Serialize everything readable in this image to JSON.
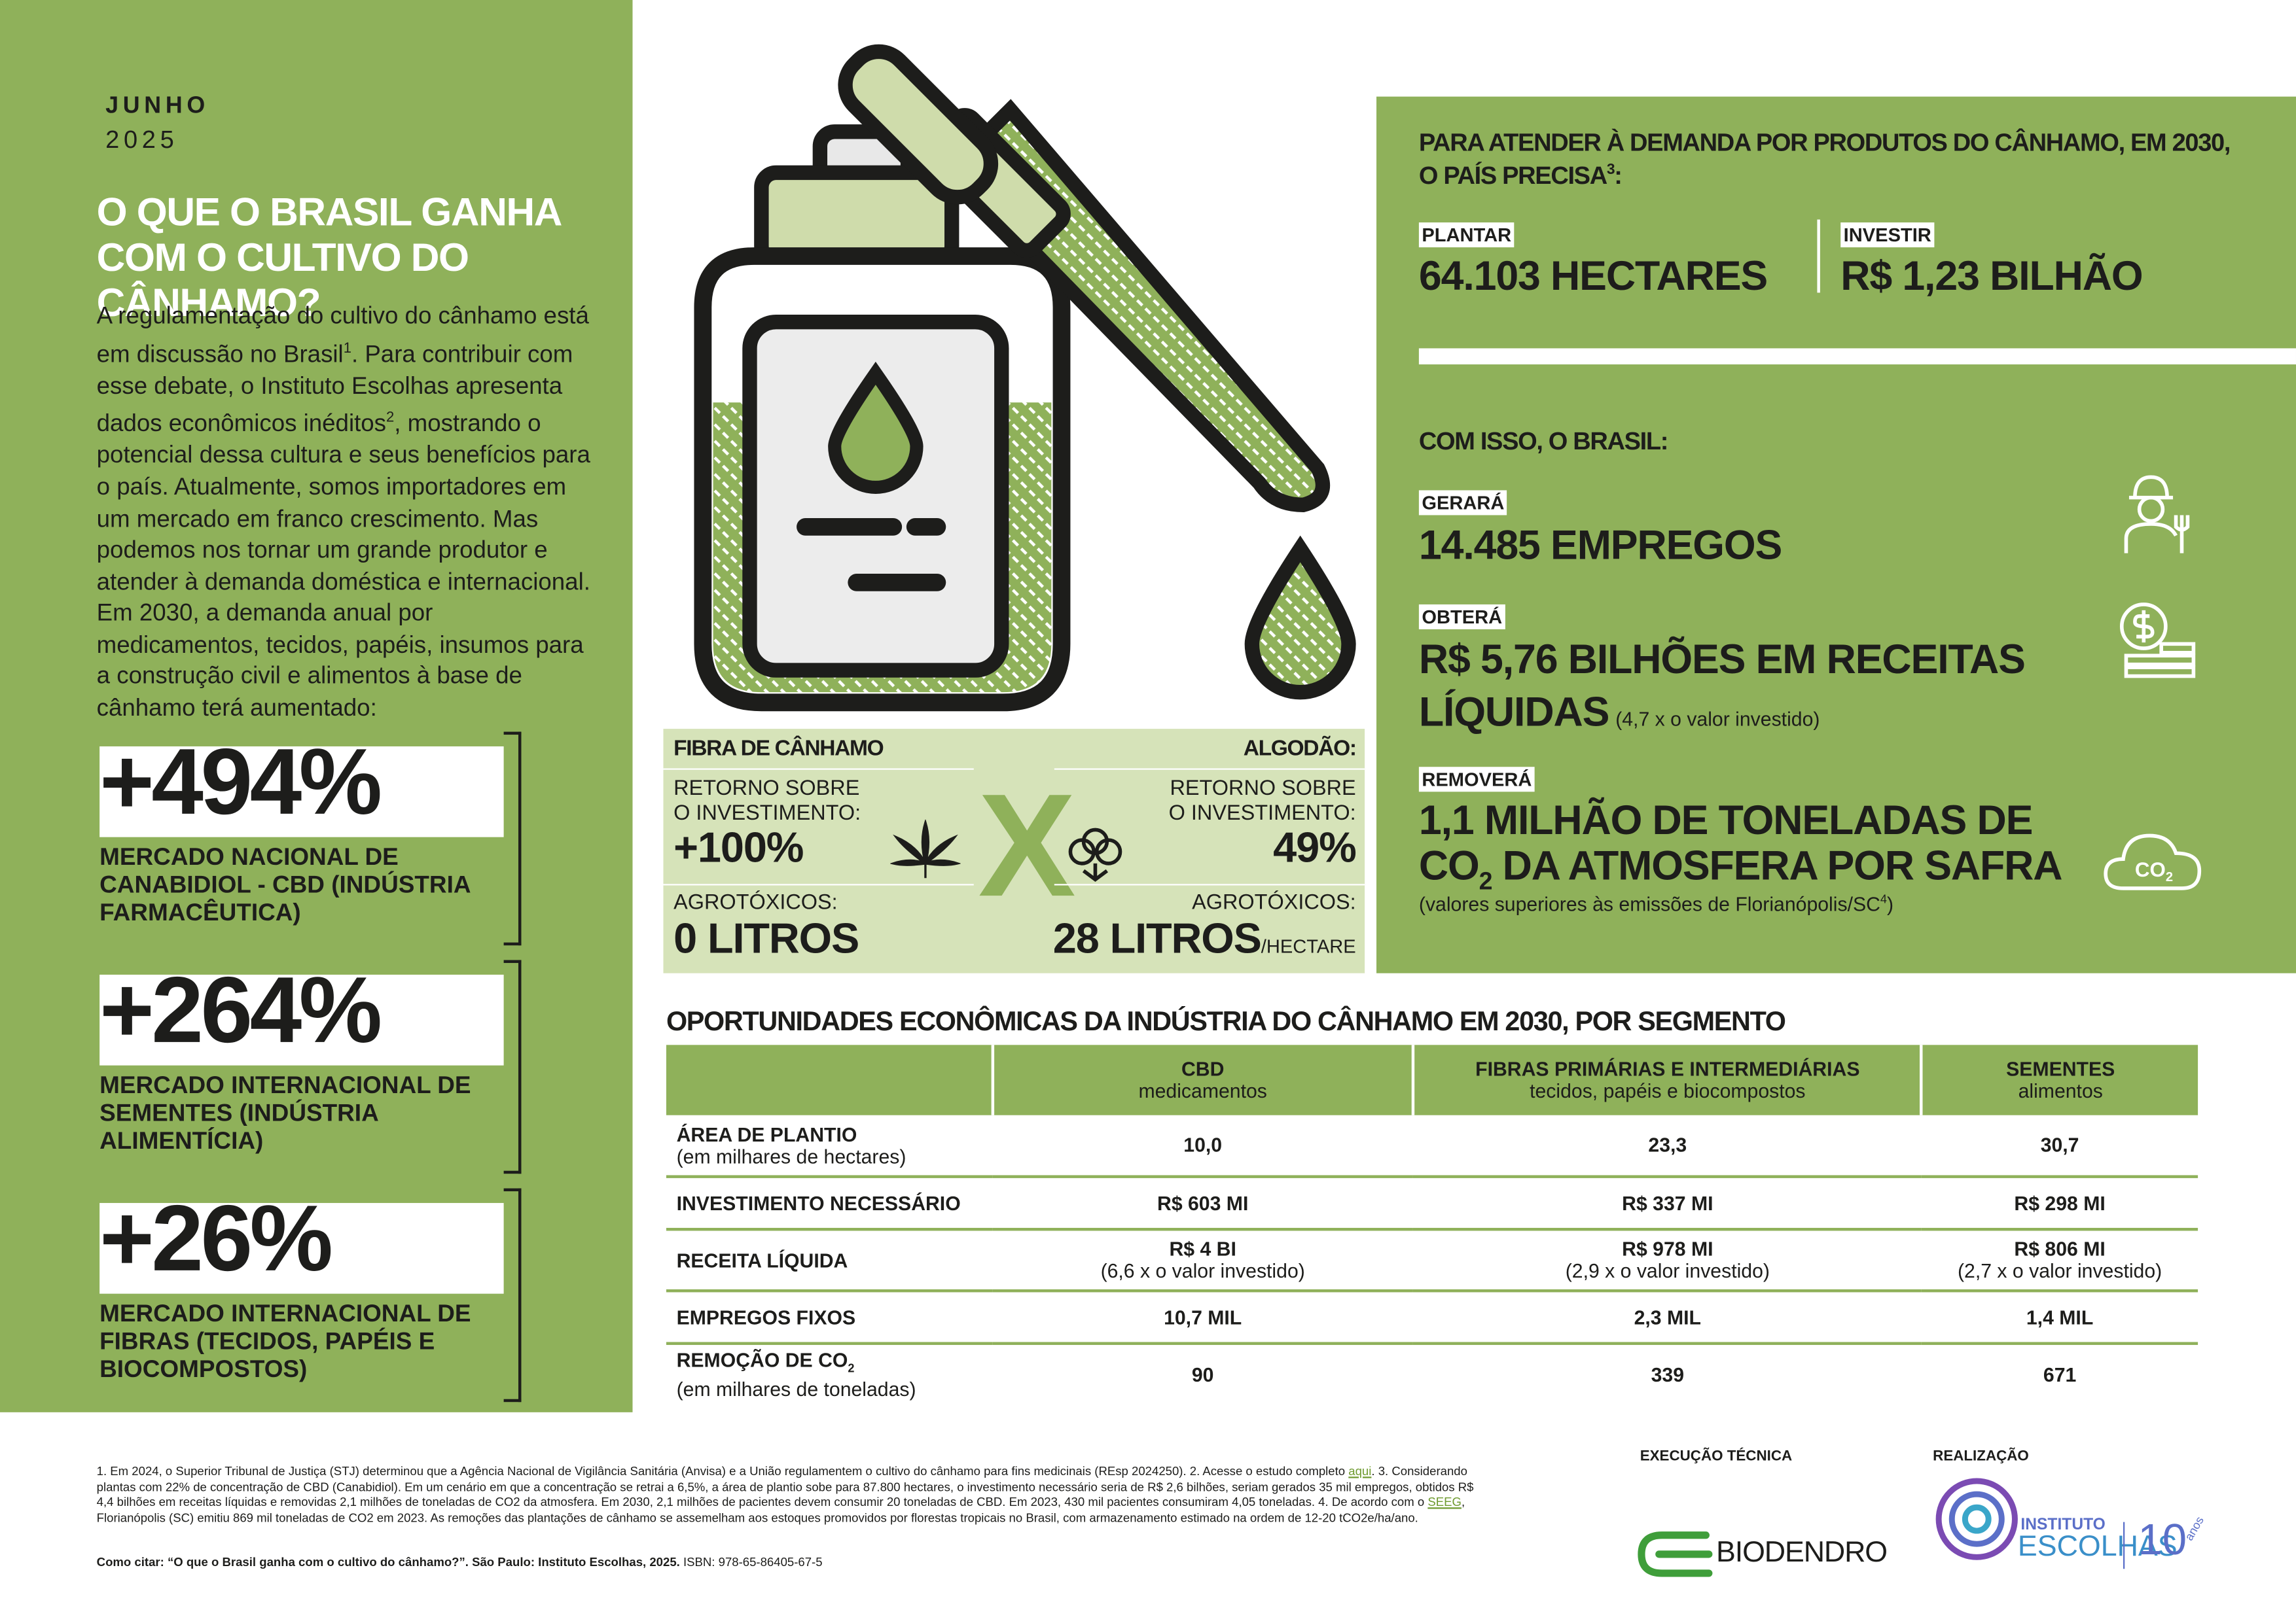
{
  "header": {
    "month": "JUNHO",
    "year": "2025",
    "title": "O QUE O BRASIL GANHA COM O CULTIVO DO CÂNHAMO?"
  },
  "intro": {
    "p1": "A regulamentação do cultivo do cânhamo está em discussão no Brasil",
    "sup1": "1",
    "p2": ". Para contribuir com esse debate, o Instituto Escolhas apresenta dados econômicos inéditos",
    "sup2": "2",
    "p3": ", mostrando o potencial dessa cultura e seus benefícios para o país. Atualmente, somos importadores em um mercado em franco crescimento. Mas podemos nos tornar um grande produtor e atender à demanda doméstica e internacional. Em 2030, a demanda anual por medicamentos, tecidos, papéis, insumos para a construção civil e alimentos à base de cânhamo terá aumentado:"
  },
  "stats": [
    {
      "value": "+494%",
      "label": "MERCADO NACIONAL DE CANABIDIOL - CBD (INDÚSTRIA FARMACÊUTICA)"
    },
    {
      "value": "+264%",
      "label": "MERCADO INTERNACIONAL DE SEMENTES (INDÚSTRIA ALIMENTÍCIA)"
    },
    {
      "value": "+26%",
      "label": "MERCADO INTERNACIONAL DE FIBRAS (TECIDOS, PAPÉIS E BIOCOMPOSTOS)"
    }
  ],
  "comparison": {
    "left_title": "FIBRA DE CÂNHAMO",
    "right_title": "ALGODÃO:",
    "left_roi_label": "RETORNO SOBRE O INVESTIMENTO:",
    "left_roi": "+100%",
    "right_roi_label": "RETORNO SOBRE O INVESTIMENTO:",
    "right_roi": "49%",
    "vs": "X",
    "left_pest_label": "AGROTÓXICOS:",
    "left_pest": "0 LITROS",
    "right_pest_label": "AGROTÓXICOS:",
    "right_pest": "28 LITROS",
    "right_pest_unit": "/HECTARE"
  },
  "demand": {
    "title": "PARA ATENDER À DEMANDA POR PRODUTOS DO CÂNHAMO, EM 2030, O PAÍS PRECISA",
    "title_sup": "3",
    "title_end": ":",
    "plant_label": "PLANTAR",
    "plant_value": "64.103 HECTARES",
    "invest_label": "INVESTIR",
    "invest_value": "R$ 1,23 BILHÃO"
  },
  "results": {
    "title": "COM ISSO, O BRASIL:",
    "jobs_label": "GERARÁ",
    "jobs_value": "14.485 EMPREGOS",
    "revenue_label": "OBTERÁ",
    "revenue_value": "R$ 5,76 BILHÕES EM RECEITAS LÍQUIDAS",
    "revenue_note": "(4,7 x o valor investido)",
    "removal_label": "REMOVERÁ",
    "removal_value_a": "1,1 MILHÃO DE TONELADAS DE CO",
    "removal_sub": "2",
    "removal_value_b": " DA ATMOSFERA POR SAFRA",
    "removal_note": "(valores superiores às emissões de Florianópolis/SC",
    "removal_note_sup": "4",
    "removal_note_end": ")",
    "icon_co": "CO",
    "icon_sub": "2"
  },
  "table": {
    "title": "OPORTUNIDADES ECONÔMICAS DA INDÚSTRIA DO CÂNHAMO EM 2030, POR SEGMENTO",
    "columns": [
      {
        "name": "CBD",
        "sub": "medicamentos"
      },
      {
        "name": "FIBRAS PRIMÁRIAS E INTERMEDIÁRIAS",
        "sub": "tecidos, papéis e biocompostos"
      },
      {
        "name": "SEMENTES",
        "sub": "alimentos"
      }
    ],
    "rows": [
      {
        "label": "ÁREA DE PLANTIO",
        "sublabel": "(em milhares de hectares)",
        "cells": [
          {
            "value": "10,0"
          },
          {
            "value": "23,3"
          },
          {
            "value": "30,7"
          }
        ]
      },
      {
        "label": "INVESTIMENTO NECESSÁRIO",
        "cells": [
          {
            "value": "R$ 603 MI"
          },
          {
            "value": "R$ 337 MI"
          },
          {
            "value": "R$ 298 MI"
          }
        ]
      },
      {
        "label": "RECEITA LÍQUIDA",
        "cells": [
          {
            "value": "R$ 4 BI",
            "note": "(6,6 x o valor investido)"
          },
          {
            "value": "R$ 978 MI",
            "note": "(2,9 x o valor investido)"
          },
          {
            "value": "R$ 806 MI",
            "note": "(2,7 x o valor investido)"
          }
        ]
      },
      {
        "label": "EMPREGOS FIXOS",
        "cells": [
          {
            "value": "10,7 MIL"
          },
          {
            "value": "2,3 MIL"
          },
          {
            "value": "1,4 MIL"
          }
        ]
      },
      {
        "label": "REMOÇÃO DE CO",
        "label_sub": "2",
        "sublabel": "(em milhares de toneladas)",
        "cells": [
          {
            "value": "90"
          },
          {
            "value": "339"
          },
          {
            "value": "671"
          }
        ]
      }
    ]
  },
  "footnotes": {
    "parts": [
      "1. Em 2024, o Superior Tribunal de Justiça (STJ) determinou que a Agência Nacional de Vigilância Sanitária (Anvisa) e a União regulamentem o cultivo do cânhamo para fins medicinais (REsp 2024250). 2. Acesse o estudo completo ",
      "aqui",
      ". 3. Considerando plantas com 22% de concentração de CBD (Canabidiol). Em um cenário em que a concentração se retrai a 6,5%, a área de plantio sobe para 87.800 hectares, o investimento necessário seria de R$ 2,6 bilhões, seriam gerados 35 mil empregos, obtidos R$ 4,4 bilhões em receitas líquidas e removidas 2,1 milhões de toneladas de CO2 da atmosfera. Em 2030, 2,1 milhões de pacientes devem consumir 20 toneladas de CBD. Em 2023, 430 mil pacientes consumiram 4,05 toneladas. 4. De acordo com o ",
      "SEEG",
      ", Florianópolis (SC) emitiu 869 mil toneladas de CO2 em 2023. As remoções das plantações de cânhamo se assemelham aos estoques promovidos por florestas tropicais no Brasil, com armazenamento estimado na ordem de 12-20 tCO2e/ha/ano."
    ],
    "cite": "Como citar: “O que o Brasil ganha com o cultivo do cânhamo?”. São Paulo: Instituto Escolhas, 2025.",
    "isbn": "ISBN: 978-65-86405-67-5"
  },
  "logos": {
    "exec_label": "EXECUÇÃO TÉCNICA",
    "real_label": "REALIZAÇÃO",
    "biodendro": "BIODENDRO",
    "instituto": "INSTITUTO",
    "escolhas": "ESCOLHAS",
    "ten": "10",
    "anos": "anos"
  }
}
